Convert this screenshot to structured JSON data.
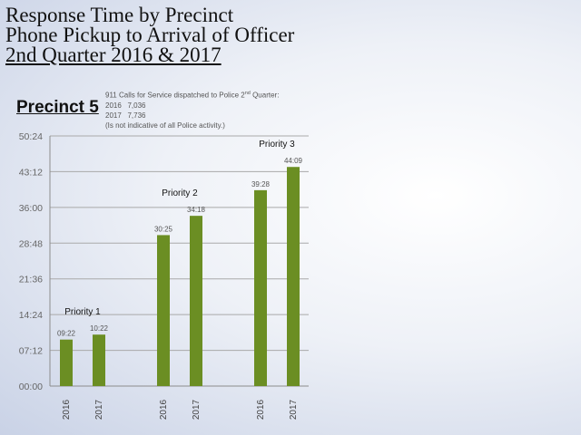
{
  "title": {
    "line1": "Response Time by Precinct",
    "line2": "Phone Pickup to Arrival of Officer",
    "line3": "2nd Quarter 2016 & 2017"
  },
  "precinct_label": "Precinct 5",
  "note": {
    "line1_prefix": "911 Calls for Service dispatched to Police 2",
    "line1_sup": "nd",
    "line1_suffix": " Quarter:",
    "row2016_year": "2016",
    "row2016_value": "7,036",
    "row2017_year": "2017",
    "row2017_value": "7,736",
    "disclaimer": "(Is not indicative of all Police activity.)"
  },
  "chart_data": {
    "type": "bar",
    "title": "",
    "xlabel": "",
    "ylabel": "",
    "ylim_seconds": [
      0,
      3024
    ],
    "y_ticks": [
      "00:00",
      "07:12",
      "14:24",
      "21:36",
      "28:48",
      "36:00",
      "43:12",
      "50:24"
    ],
    "y_ticks_seconds": [
      0,
      432,
      864,
      1296,
      1728,
      2160,
      2592,
      3024
    ],
    "grid": true,
    "bar_color": "#6b8e23",
    "groups": [
      {
        "name": "Priority 1",
        "bars": [
          {
            "category": "2016",
            "value": "09:22",
            "seconds": 562
          },
          {
            "category": "2017",
            "value": "10:22",
            "seconds": 622
          }
        ]
      },
      {
        "name": "Priority 2",
        "bars": [
          {
            "category": "2016",
            "value": "30:25",
            "seconds": 1825
          },
          {
            "category": "2017",
            "value": "34:18",
            "seconds": 2058
          }
        ]
      },
      {
        "name": "Priority 3",
        "bars": [
          {
            "category": "2016",
            "value": "39:28",
            "seconds": 2368
          },
          {
            "category": "2017",
            "value": "44:09",
            "seconds": 2649
          }
        ]
      }
    ]
  }
}
